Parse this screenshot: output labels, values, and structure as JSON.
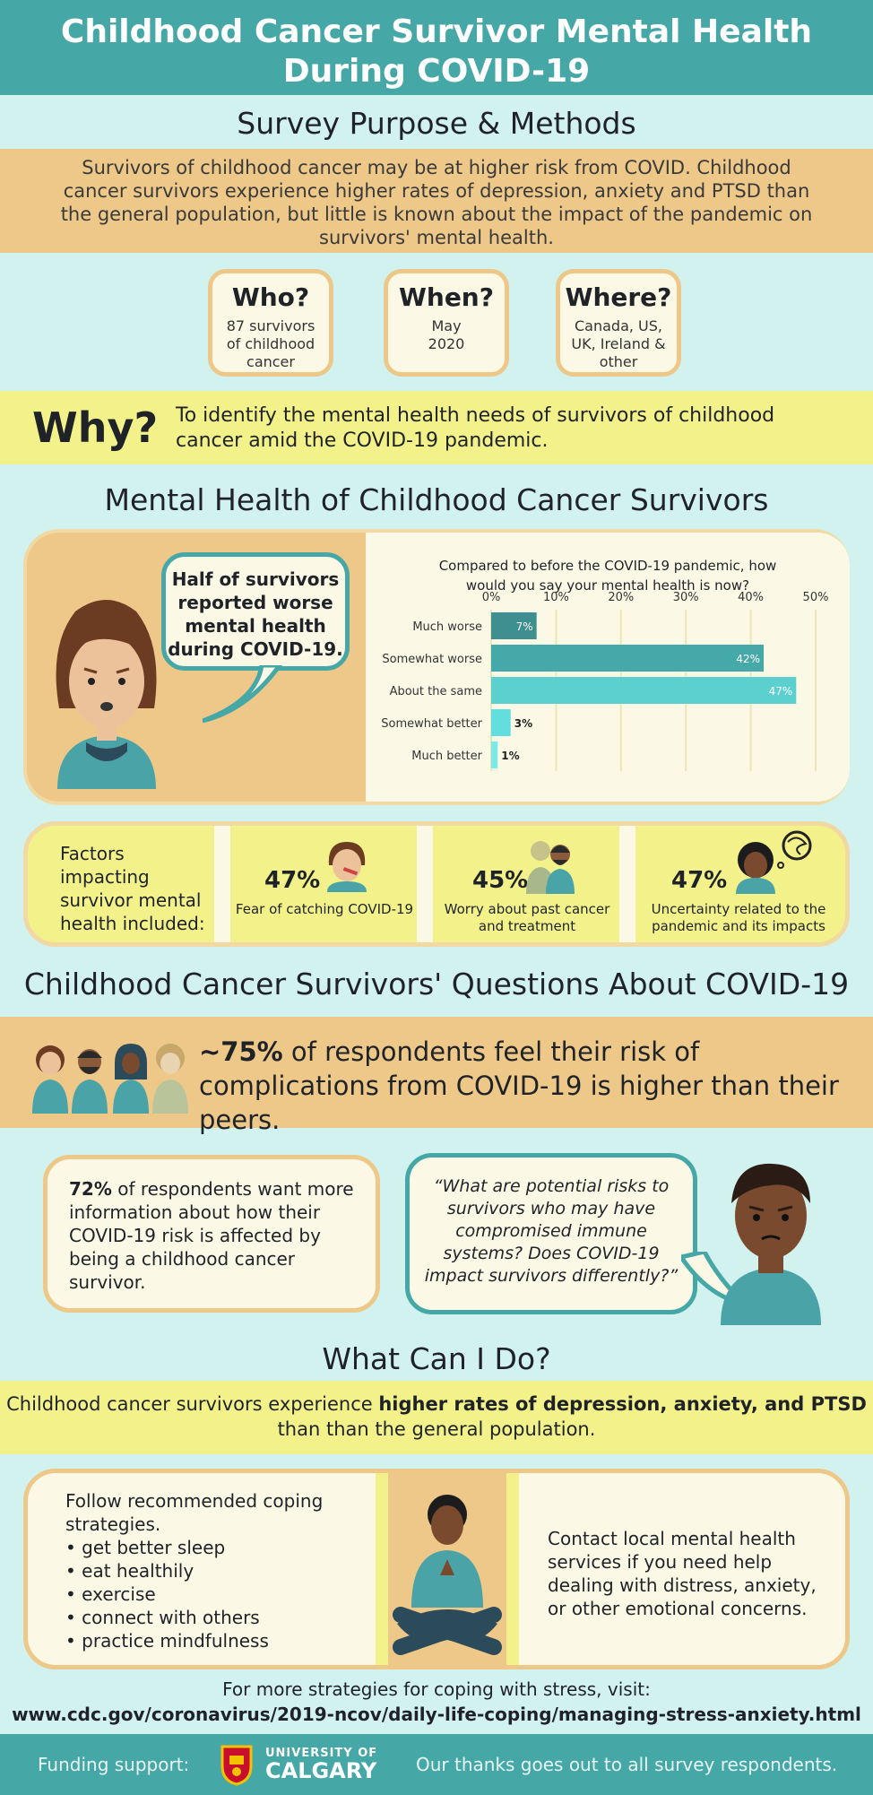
{
  "title": "Childhood Cancer Survivor Mental Health During COVID-19",
  "purpose": {
    "heading": "Survey Purpose & Methods",
    "text": "Survivors of childhood cancer may be at higher risk from COVID. Childhood cancer survivors experience higher rates of depression, anxiety and PTSD than the general population, but little is known about the impact of the pandemic on survivors' mental health."
  },
  "who": {
    "label": "Who?",
    "value": "87 survivors of childhood cancer"
  },
  "when": {
    "label": "When?",
    "value": "May 2020"
  },
  "where": {
    "label": "Where?",
    "value": "Canada, US, UK, Ireland & other"
  },
  "why": {
    "label": "Why?",
    "text": "To identify the mental health needs of survivors of childhood cancer amid the COVID-19 pandemic."
  },
  "mental_health": {
    "heading": "Mental Health of Childhood Cancer Survivors",
    "bubble": "Half of survivors reported worse mental health during COVID-19."
  },
  "chart_data": {
    "type": "bar",
    "orientation": "horizontal",
    "title": "Compared to before the COVID-19 pandemic, how would you say your mental health is now?",
    "categories": [
      "Much worse",
      "Somewhat worse",
      "About the same",
      "Somewhat better",
      "Much better"
    ],
    "values": [
      7,
      42,
      47,
      3,
      1
    ],
    "labels": [
      "7%",
      "42%",
      "47%",
      "3%",
      "1%"
    ],
    "xlim": [
      0,
      50
    ],
    "ticks": [
      "0%",
      "10%",
      "20%",
      "30%",
      "40%",
      "50%"
    ],
    "colors": [
      "#3e8f8f",
      "#46a9a9",
      "#5bd0cf",
      "#62dede",
      "#7ae9e8"
    ],
    "grid": true
  },
  "factors": {
    "label": "Factors impacting survivor mental health included:",
    "items": [
      {
        "pct": "47%",
        "text": "Fear of catching COVID-19"
      },
      {
        "pct": "45%",
        "text": "Worry about past cancer and treatment"
      },
      {
        "pct": "47%",
        "text": "Uncertainty related to the pandemic and its impacts"
      }
    ]
  },
  "questions": {
    "heading": "Childhood Cancer Survivors' Questions About COVID-19",
    "risk_strong": "~75%",
    "risk_text": " of respondents feel their risk of complications from COVID-19 is higher than their peers.",
    "info_strong": "72%",
    "info_text": " of respondents want more information about how their COVID-19 risk is affected by being a childhood cancer survivor.",
    "quote": "“What are potential risks to survivors who may have compromised immune systems? Does COVID-19 impact survivors differently?”"
  },
  "what_can_i_do": {
    "heading": "What Can I Do?",
    "band_pre": "Childhood cancer survivors experience ",
    "band_strong": "higher rates of depression, anxiety, and PTSD",
    "band_post": " than than the general population.",
    "coping_intro": "Follow recommended coping strategies.",
    "coping_items": [
      "• get better sleep",
      "• eat healthily",
      "• exercise",
      "• connect with others",
      "• practice mindfulness"
    ],
    "contact": "Contact local mental health services if you need help dealing with distress, anxiety, or other emotional concerns."
  },
  "more": {
    "text": "For more strategies for coping with stress, visit:",
    "url": "www.cdc.gov/coronavirus/2019-ncov/daily-life-coping/managing-stress-anxiety.html"
  },
  "footer": {
    "funding": "Funding support:",
    "university_line1": "UNIVERSITY OF",
    "university_line2": "CALGARY",
    "thanks": "Our thanks goes out to all survey respondents."
  }
}
